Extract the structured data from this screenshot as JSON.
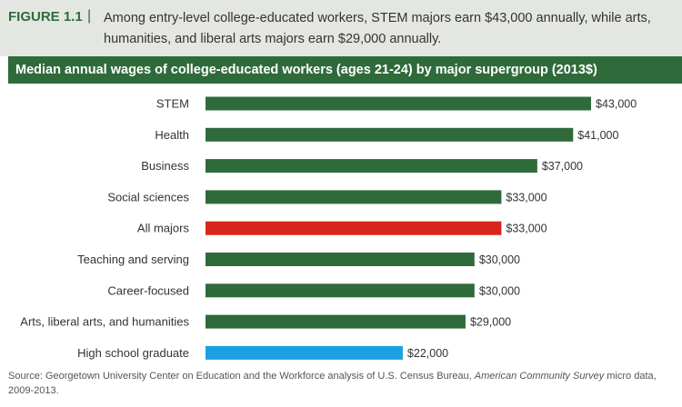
{
  "header": {
    "figure_label": "FIGURE 1.1",
    "separator": "|",
    "caption": "Among entry-level college-educated workers, STEM majors earn $43,000 annually, while arts, humanities, and liberal arts majors earn $29,000 annually."
  },
  "chart_title": "Median annual wages of college-educated workers (ages 21-24) by major supergroup (2013$)",
  "chart_data": {
    "type": "bar",
    "orientation": "horizontal",
    "title": "Median annual wages of college-educated workers (ages 21-24) by major supergroup (2013$)",
    "xlabel": "",
    "ylabel": "",
    "xlim": [
      0,
      43000
    ],
    "categories": [
      "STEM",
      "Health",
      "Business",
      "Social sciences",
      "All majors",
      "Teaching and serving",
      "Career-focused",
      "Arts, liberal arts, and humanities",
      "High school graduate"
    ],
    "values": [
      43000,
      41000,
      37000,
      33000,
      33000,
      30000,
      30000,
      29000,
      22000
    ],
    "value_labels": [
      "$43,000",
      "$41,000",
      "$37,000",
      "$33,000",
      "$33,000",
      "$30,000",
      "$30,000",
      "$29,000",
      "$22,000"
    ],
    "colors": [
      "#2f6b3a",
      "#2f6b3a",
      "#2f6b3a",
      "#2f6b3a",
      "#d9261c",
      "#2f6b3a",
      "#2f6b3a",
      "#2f6b3a",
      "#1ba1e2"
    ],
    "grid": false
  },
  "source": {
    "prefix": "Source: Georgetown University Center on Education and the Workforce analysis of U.S. Census Bureau, ",
    "survey": "American Community Survey",
    "suffix": "micro data, 2009-2013."
  }
}
